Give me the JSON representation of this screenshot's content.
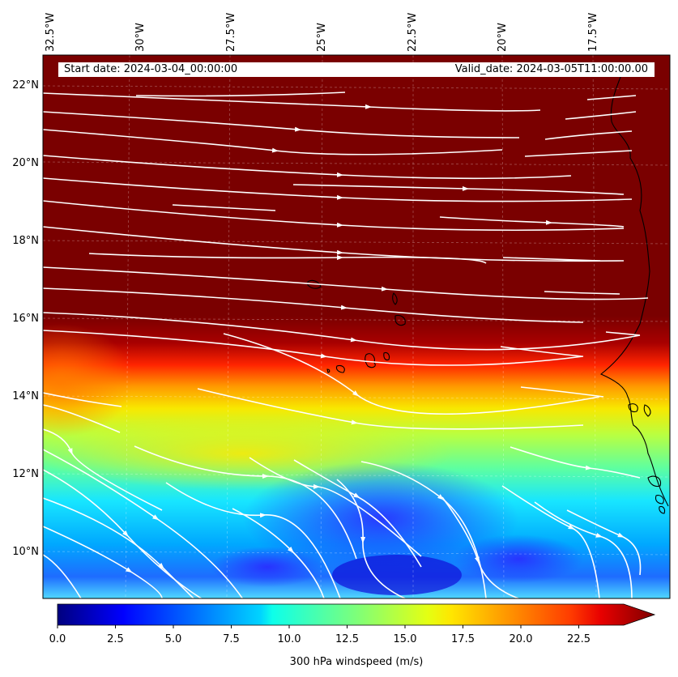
{
  "map": {
    "lon_labels": [
      "32.5°W",
      "30°W",
      "27.5°W",
      "25°W",
      "22.5°W",
      "20°W",
      "17.5°W"
    ],
    "lat_labels": [
      "22°N",
      "20°N",
      "18°N",
      "16°N",
      "14°N",
      "12°N",
      "10°N"
    ],
    "start_date": "Start date: 2024-03-04_00:00:00",
    "valid_date": "Valid_date: 2024-03-05T11:00:00.00",
    "field": "300 hPa windspeed",
    "streamline_color": "#ffffff"
  },
  "colorbar": {
    "label": "300 hPa windspeed (m/s)",
    "ticks": [
      "0.0",
      "2.5",
      "5.0",
      "7.5",
      "10.0",
      "12.5",
      "15.0",
      "17.5",
      "20.0",
      "22.5"
    ],
    "min": 0,
    "max": 25,
    "extend": "max",
    "colormap": "jet"
  }
}
